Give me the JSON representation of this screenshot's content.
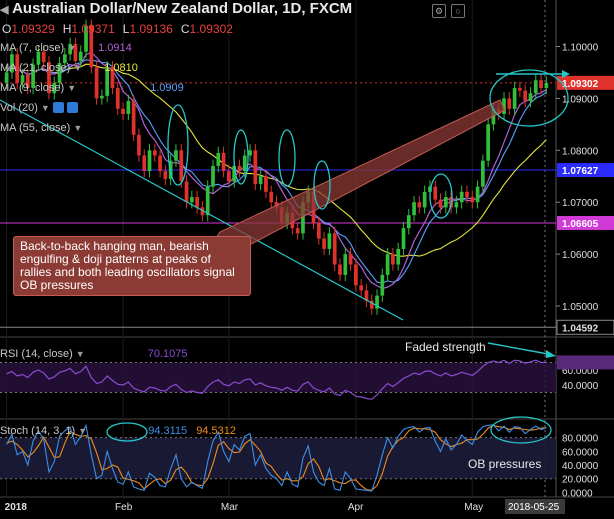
{
  "header": {
    "title": "Australian Dollar/New Zealand Dollar, 1D, FXCM",
    "ohlc": [
      {
        "key": "O",
        "value": "1.09329"
      },
      {
        "key": "H",
        "value": "1.09371"
      },
      {
        "key": "L",
        "value": "1.09136"
      },
      {
        "key": "C",
        "value": "1.09302"
      }
    ]
  },
  "indicators": [
    {
      "label": "MA (7, close)",
      "value": "1.0914",
      "color": "#b061d6"
    },
    {
      "label": "MA (21, close)",
      "value": "1.0810",
      "color": "#e5e33c"
    },
    {
      "label": "MA (9, close)",
      "value": "1.0909",
      "color": "#5aa0ff"
    },
    {
      "label": "Vol (20)",
      "value": "",
      "color": "#cccccc"
    },
    {
      "label": "MA (55, close)",
      "value": "",
      "color": "#cccccc"
    }
  ],
  "callout": "Back-to-back hanging man, bearish engulfing & doji patterns at peaks of rallies and both leading oscillators signal OB pressures",
  "notes": {
    "faded": "Faded strength",
    "ob": "OB pressures"
  },
  "rsi_legend": {
    "label": "RSI (14, close)",
    "value": "70.1075"
  },
  "stoch_legend": {
    "label": "Stoch (14, 3, 1)",
    "k": "94.3115",
    "d": "94.5312"
  },
  "colors": {
    "bull": "#2fbf3a",
    "bear": "#e0322c",
    "ma7": "#b061d6",
    "ma9": "#5aa0ff",
    "ma21": "#e5e33c",
    "annotation": "#27c6c9",
    "rsi": "#8a4ccf",
    "stoch_k": "#3b8fe8",
    "stoch_d": "#f08c1a"
  },
  "chart_data": [
    {
      "type": "candlestick",
      "title": "Australian Dollar/New Zealand Dollar, 1D, FXCM",
      "price_axis_ticks": [
        "1.10000",
        "1.09000",
        "1.08000",
        "1.07000",
        "1.06000",
        "1.05000"
      ],
      "price_badges": [
        "1.09302",
        "1.07627",
        "1.06605",
        "1.04592"
      ],
      "ylim": [
        1.0448,
        1.108
      ],
      "x_ticks": [
        "2018",
        "Feb",
        "Mar",
        "Apr",
        "May"
      ],
      "current_date": "2018-05-25",
      "closes": [
        1.095,
        1.0985,
        1.093,
        1.0945,
        1.092,
        1.0965,
        1.099,
        1.097,
        1.091,
        1.093,
        1.0968,
        1.0985,
        1.1005,
        1.0972,
        1.099,
        1.104,
        1.096,
        1.09,
        1.0905,
        1.096,
        1.092,
        1.088,
        1.087,
        1.0895,
        1.083,
        1.079,
        1.076,
        1.08,
        1.079,
        1.076,
        1.0745,
        1.078,
        1.08,
        1.074,
        1.07,
        1.071,
        1.069,
        1.0675,
        1.073,
        1.077,
        1.0795,
        1.076,
        1.074,
        1.077,
        1.076,
        1.079,
        1.08,
        1.0735,
        1.075,
        1.072,
        1.07,
        1.069,
        1.066,
        1.068,
        1.065,
        1.064,
        1.07,
        1.072,
        1.066,
        1.063,
        1.061,
        1.064,
        1.058,
        1.056,
        1.06,
        1.058,
        1.054,
        1.053,
        1.051,
        1.0495,
        1.052,
        1.056,
        1.06,
        1.058,
        1.061,
        1.065,
        1.0675,
        1.07,
        1.069,
        1.072,
        1.073,
        1.0705,
        1.069,
        1.071,
        1.069,
        1.07,
        1.072,
        1.071,
        1.07,
        1.073,
        1.078,
        1.085,
        1.088,
        1.087,
        1.09,
        1.088,
        1.092,
        1.0915,
        1.0895,
        1.091,
        1.0935,
        1.092,
        1.093
      ],
      "ma": {
        "MA (7, close)": "1.0914",
        "MA (21, close)": "1.0810",
        "MA (9, close)": "1.0909"
      }
    },
    {
      "type": "line",
      "title": "RSI (14, close)",
      "last": 70.1075,
      "ticks": [
        "60.0000",
        "40.0000"
      ],
      "values": [
        55,
        58,
        52,
        54,
        50,
        57,
        60,
        56,
        48,
        51,
        57,
        59,
        62,
        55,
        58,
        65,
        50,
        42,
        44,
        52,
        46,
        41,
        40,
        44,
        36,
        33,
        31,
        37,
        36,
        33,
        32,
        38,
        41,
        34,
        30,
        32,
        30,
        29,
        38,
        44,
        47,
        41,
        39,
        44,
        42,
        47,
        48,
        40,
        43,
        39,
        37,
        36,
        33,
        37,
        33,
        32,
        41,
        44,
        36,
        33,
        31,
        36,
        28,
        26,
        33,
        30,
        25,
        24,
        22,
        21,
        27,
        35,
        42,
        38,
        43,
        49,
        52,
        56,
        54,
        58,
        59,
        55,
        52,
        56,
        52,
        54,
        57,
        55,
        53,
        58,
        65,
        70,
        72,
        70,
        73,
        69,
        73,
        72,
        69,
        71,
        73,
        70,
        70.1
      ]
    },
    {
      "type": "line",
      "title": "Stoch (14, 3, 1)",
      "k_last": 94.3115,
      "d_last": 94.5312,
      "ticks": [
        "80.0000",
        "60.0000",
        "40.0000",
        "20.0000",
        "0.0000"
      ],
      "k": [
        70,
        85,
        55,
        60,
        40,
        75,
        90,
        78,
        30,
        45,
        82,
        90,
        95,
        70,
        82,
        98,
        55,
        20,
        25,
        60,
        35,
        15,
        12,
        30,
        8,
        5,
        3,
        28,
        22,
        10,
        8,
        35,
        55,
        20,
        8,
        15,
        10,
        6,
        45,
        75,
        88,
        60,
        45,
        70,
        62,
        82,
        86,
        40,
        55,
        35,
        25,
        20,
        10,
        30,
        12,
        8,
        50,
        68,
        30,
        15,
        10,
        35,
        5,
        3,
        30,
        20,
        5,
        4,
        3,
        2,
        25,
        55,
        80,
        65,
        82,
        92,
        95,
        96,
        88,
        94,
        95,
        75,
        60,
        78,
        62,
        70,
        84,
        76,
        70,
        88,
        96,
        98,
        99,
        90,
        97,
        88,
        96,
        95,
        86,
        92,
        97,
        92,
        94.3
      ],
      "d": [
        72,
        75,
        70,
        62,
        52,
        58,
        68,
        81,
        66,
        51,
        52,
        72,
        89,
        85,
        82,
        83,
        78,
        58,
        33,
        35,
        40,
        37,
        21,
        19,
        17,
        14,
        5,
        12,
        18,
        20,
        13,
        18,
        33,
        37,
        28,
        14,
        11,
        10,
        20,
        42,
        69,
        74,
        64,
        58,
        59,
        71,
        77,
        69,
        60,
        43,
        38,
        27,
        18,
        20,
        17,
        17,
        23,
        42,
        49,
        38,
        18,
        20,
        17,
        14,
        13,
        18,
        18,
        10,
        4,
        3,
        10,
        27,
        53,
        67,
        76,
        80,
        90,
        94,
        93,
        93,
        92,
        88,
        77,
        71,
        67,
        70,
        72,
        77,
        77,
        78,
        85,
        94,
        98,
        96,
        95,
        92,
        94,
        93,
        92,
        91,
        92,
        94,
        94.5
      ]
    }
  ]
}
